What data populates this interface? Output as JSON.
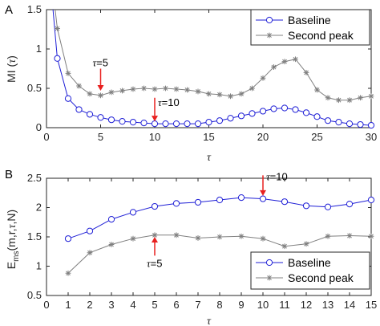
{
  "chart_data": [
    {
      "panel": "A",
      "type": "line",
      "ylabel_main": "MI (",
      "ylabel_sym": "τ",
      "ylabel_close": ")",
      "xlabel": "τ",
      "xlim": [
        0,
        30
      ],
      "ylim": [
        0,
        1.5
      ],
      "xticks": [
        "0",
        "5",
        "10",
        "15",
        "20",
        "25",
        "30"
      ],
      "yticks": [
        "0",
        "0.5",
        "1",
        "1.5"
      ],
      "xtick_values": [
        0,
        5,
        10,
        15,
        20,
        25,
        30
      ],
      "ytick_values": [
        0,
        0.5,
        1,
        1.5
      ],
      "legend_position": "top-right",
      "series": [
        {
          "name": "Baseline",
          "marker": "circle",
          "color": "#1f1fd6",
          "x": [
            0.6,
            1,
            2,
            3,
            4,
            5,
            6,
            7,
            8,
            9,
            10,
            11,
            12,
            13,
            14,
            15,
            16,
            17,
            18,
            19,
            20,
            21,
            22,
            23,
            24,
            25,
            26,
            27,
            28,
            29,
            30
          ],
          "y": [
            1.5,
            0.88,
            0.37,
            0.23,
            0.17,
            0.13,
            0.1,
            0.08,
            0.07,
            0.06,
            0.05,
            0.05,
            0.05,
            0.05,
            0.05,
            0.07,
            0.09,
            0.12,
            0.15,
            0.18,
            0.21,
            0.24,
            0.25,
            0.23,
            0.19,
            0.14,
            0.09,
            0.07,
            0.05,
            0.04,
            0.03
          ],
          "marked": [
            false,
            true,
            true,
            true,
            true,
            true,
            true,
            true,
            true,
            true,
            true,
            true,
            true,
            true,
            true,
            true,
            true,
            true,
            true,
            true,
            true,
            true,
            true,
            true,
            true,
            true,
            true,
            true,
            true,
            true,
            true
          ]
        },
        {
          "name": "Second peak",
          "marker": "star",
          "color": "#808080",
          "x": [
            0.8,
            1,
            2,
            3,
            4,
            5,
            6,
            7,
            8,
            9,
            10,
            11,
            12,
            13,
            14,
            15,
            16,
            17,
            18,
            19,
            20,
            21,
            22,
            23,
            24,
            25,
            26,
            27,
            28,
            29,
            30
          ],
          "y": [
            1.5,
            1.26,
            0.69,
            0.53,
            0.43,
            0.41,
            0.45,
            0.47,
            0.49,
            0.5,
            0.49,
            0.5,
            0.49,
            0.48,
            0.46,
            0.43,
            0.42,
            0.4,
            0.43,
            0.5,
            0.63,
            0.77,
            0.84,
            0.87,
            0.7,
            0.48,
            0.38,
            0.35,
            0.35,
            0.38,
            0.4
          ],
          "marked": [
            false,
            true,
            true,
            true,
            true,
            true,
            true,
            true,
            true,
            true,
            true,
            true,
            true,
            true,
            true,
            true,
            true,
            true,
            true,
            true,
            true,
            true,
            true,
            true,
            true,
            true,
            true,
            true,
            true,
            true,
            true
          ]
        }
      ],
      "annotations": [
        {
          "sym": "τ",
          "text": "=5",
          "x": 5,
          "arrow_from_y": 0.75,
          "arrow_to_y": 0.47
        },
        {
          "sym": "τ",
          "text": "=10",
          "x": 10,
          "arrow_from_y": 0.38,
          "arrow_to_y": 0.08
        }
      ]
    },
    {
      "panel": "B",
      "type": "line",
      "ylabel_main": "E",
      "ylabel_sub": "ms",
      "ylabel_rest": "(m,r,",
      "ylabel_sym": "τ",
      "ylabel_end": ",N)",
      "xlabel": "τ",
      "xlim": [
        0,
        15
      ],
      "ylim": [
        0.5,
        2.5
      ],
      "xticks": [
        "0",
        "1",
        "2",
        "3",
        "4",
        "5",
        "6",
        "7",
        "8",
        "9",
        "10",
        "11",
        "12",
        "13",
        "14",
        "15"
      ],
      "yticks": [
        "0.5",
        "1",
        "1.5",
        "2",
        "2.5"
      ],
      "xtick_values": [
        0,
        1,
        2,
        3,
        4,
        5,
        6,
        7,
        8,
        9,
        10,
        11,
        12,
        13,
        14,
        15
      ],
      "ytick_values": [
        0.5,
        1,
        1.5,
        2,
        2.5
      ],
      "legend_position": "bottom-right",
      "series": [
        {
          "name": "Baseline",
          "marker": "circle",
          "color": "#1f1fd6",
          "x": [
            1,
            2,
            3,
            4,
            5,
            6,
            7,
            8,
            9,
            10,
            11,
            12,
            13,
            14,
            15
          ],
          "y": [
            1.47,
            1.6,
            1.8,
            1.92,
            2.02,
            2.07,
            2.09,
            2.13,
            2.17,
            2.15,
            2.1,
            2.03,
            2.01,
            2.06,
            2.13
          ],
          "marked": [
            true,
            true,
            true,
            true,
            true,
            true,
            true,
            true,
            true,
            true,
            true,
            true,
            true,
            true,
            true
          ]
        },
        {
          "name": "Second peak",
          "marker": "star",
          "color": "#808080",
          "x": [
            1,
            2,
            3,
            4,
            5,
            6,
            7,
            8,
            9,
            10,
            11,
            12,
            13,
            14,
            15
          ],
          "y": [
            0.88,
            1.23,
            1.37,
            1.47,
            1.53,
            1.53,
            1.48,
            1.5,
            1.51,
            1.47,
            1.34,
            1.38,
            1.51,
            1.52,
            1.51
          ],
          "marked": [
            true,
            true,
            true,
            true,
            true,
            true,
            true,
            true,
            true,
            true,
            true,
            true,
            true,
            true,
            true
          ]
        }
      ],
      "annotations": [
        {
          "sym": "τ",
          "text": "=10",
          "x": 10,
          "arrow_from_y": 2.55,
          "arrow_to_y": 2.2
        },
        {
          "sym": "τ",
          "text": "=5",
          "x": 5,
          "arrow_from_y": 1.18,
          "arrow_to_y": 1.5
        }
      ]
    }
  ]
}
